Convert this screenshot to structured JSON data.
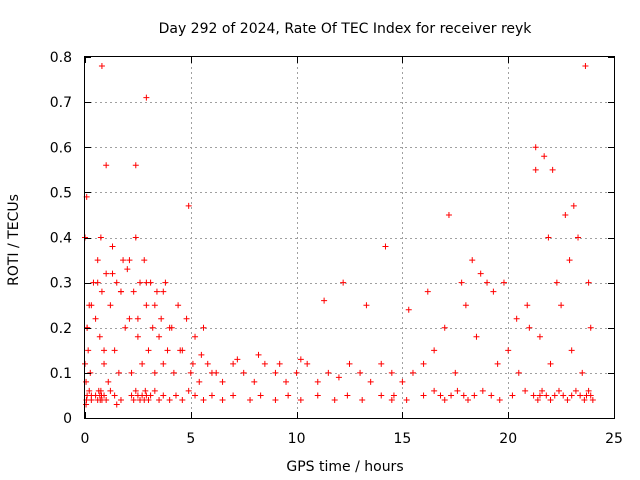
{
  "chart_data": {
    "type": "scatter",
    "title": "Day 292 of 2024, Rate Of TEC Index for receiver reyk",
    "xlabel": "GPS time / hours",
    "ylabel": "ROTI / TECUs",
    "xlim": [
      0,
      25
    ],
    "ylim": [
      0,
      0.8
    ],
    "xticks": [
      0,
      5,
      10,
      15,
      20,
      25
    ],
    "xtick_labels": [
      "0",
      "5",
      "10",
      "15",
      "20",
      "25"
    ],
    "yticks": [
      0,
      0.1,
      0.2,
      0.3,
      0.4,
      0.5,
      0.6,
      0.7,
      0.8
    ],
    "ytick_labels": [
      "0",
      "0.1",
      "0.2",
      "0.3",
      "0.4",
      "0.5",
      "0.6",
      "0.7",
      "0.8"
    ],
    "grid": true,
    "marker": "+",
    "marker_color": "#ff0000",
    "series": [
      {
        "x": [
          0.0,
          0.05,
          0.08,
          0.1,
          0.15,
          0.2,
          0.25,
          0.3,
          0.4,
          0.5,
          0.6,
          0.7,
          0.75,
          0.8,
          0.9,
          1.0,
          1.1,
          1.2,
          1.3,
          1.4,
          1.5,
          1.6,
          1.7,
          1.8,
          1.9,
          2.0,
          2.1,
          2.2,
          2.3,
          2.4,
          2.5,
          2.6,
          2.7,
          2.8,
          2.9,
          3.0,
          3.1,
          3.2,
          3.3,
          3.4,
          3.5,
          3.6,
          3.7,
          3.8,
          3.9,
          4.0,
          4.2,
          4.4,
          4.6,
          4.8,
          5.0,
          5.2,
          5.4,
          5.6,
          5.8,
          6.0,
          6.5,
          7.0,
          7.5,
          8.0,
          8.5,
          9.0,
          9.5,
          10.0,
          10.5,
          11.0,
          11.5,
          12.0,
          12.5,
          13.0,
          13.5,
          14.0,
          14.5,
          15.0,
          15.5,
          16.0,
          16.5,
          17.0,
          17.5,
          18.0,
          18.5,
          19.0,
          19.5,
          20.0,
          20.5,
          21.0,
          21.5,
          22.0,
          22.5,
          23.0,
          23.5,
          23.9,
          0.0,
          0.05,
          0.07,
          0.1,
          0.2,
          0.3,
          0.5,
          0.6,
          0.65,
          0.7,
          0.72,
          0.75,
          0.78,
          0.8,
          0.9,
          1.0,
          1.2,
          1.4,
          1.5,
          1.7,
          2.2,
          2.3,
          2.4,
          2.5,
          2.6,
          2.7,
          2.8,
          2.85,
          2.9,
          3.0,
          3.1,
          3.3,
          3.5,
          3.7,
          4.0,
          4.3,
          4.6,
          4.9,
          5.2,
          5.6,
          6.0,
          6.5,
          7.0,
          7.8,
          8.3,
          9.0,
          9.6,
          10.2,
          11.0,
          11.8,
          12.4,
          13.1,
          14.0,
          14.5,
          14.6,
          15.2,
          16.0,
          16.5,
          16.8,
          17.0,
          17.3,
          17.6,
          17.9,
          18.1,
          18.4,
          18.8,
          19.2,
          19.6,
          20.2,
          20.8,
          21.2,
          21.4,
          21.5,
          21.6,
          21.8,
          22.0,
          22.2,
          22.4,
          22.6,
          22.8,
          23.0,
          23.2,
          23.4,
          23.6,
          23.7,
          23.8,
          23.9,
          24.0,
          0.8,
          1.0,
          2.4,
          2.9,
          4.9,
          21.3,
          21.7,
          22.1,
          22.7,
          23.1,
          23.65,
          0.1,
          0.3,
          0.6,
          0.9,
          1.3,
          1.7,
          2.1,
          2.5,
          2.9,
          3.3,
          3.7,
          4.1,
          4.5,
          5.1,
          5.5,
          6.2,
          7.2,
          8.2,
          9.2,
          10.2,
          11.3,
          12.2,
          13.3,
          14.2,
          15.3,
          16.2,
          17.2,
          17.8,
          18.3,
          18.7,
          19.3,
          19.8,
          20.4,
          20.9,
          21.3,
          21.9,
          22.3,
          22.9,
          23.3,
          23.8
        ],
        "y": [
          0.12,
          0.08,
          0.49,
          0.2,
          0.15,
          0.25,
          0.1,
          0.05,
          0.3,
          0.22,
          0.35,
          0.18,
          0.4,
          0.28,
          0.12,
          0.32,
          0.08,
          0.25,
          0.38,
          0.15,
          0.3,
          0.1,
          0.28,
          0.35,
          0.2,
          0.33,
          0.22,
          0.1,
          0.28,
          0.4,
          0.18,
          0.3,
          0.12,
          0.35,
          0.25,
          0.15,
          0.3,
          0.2,
          0.1,
          0.28,
          0.18,
          0.22,
          0.12,
          0.3,
          0.15,
          0.2,
          0.1,
          0.25,
          0.15,
          0.22,
          0.1,
          0.18,
          0.08,
          0.2,
          0.12,
          0.1,
          0.08,
          0.12,
          0.1,
          0.08,
          0.12,
          0.1,
          0.08,
          0.1,
          0.12,
          0.08,
          0.1,
          0.09,
          0.12,
          0.1,
          0.08,
          0.12,
          0.1,
          0.08,
          0.1,
          0.12,
          0.15,
          0.2,
          0.1,
          0.25,
          0.18,
          0.3,
          0.12,
          0.15,
          0.1,
          0.2,
          0.18,
          0.12,
          0.25,
          0.15,
          0.1,
          0.2,
          0.4,
          0.03,
          0.04,
          0.05,
          0.06,
          0.04,
          0.05,
          0.04,
          0.06,
          0.05,
          0.04,
          0.06,
          0.05,
          0.04,
          0.05,
          0.04,
          0.06,
          0.05,
          0.03,
          0.04,
          0.05,
          0.04,
          0.06,
          0.05,
          0.04,
          0.05,
          0.04,
          0.06,
          0.05,
          0.04,
          0.05,
          0.06,
          0.04,
          0.05,
          0.04,
          0.05,
          0.04,
          0.06,
          0.05,
          0.04,
          0.05,
          0.04,
          0.05,
          0.04,
          0.05,
          0.04,
          0.05,
          0.04,
          0.05,
          0.04,
          0.05,
          0.04,
          0.05,
          0.04,
          0.05,
          0.04,
          0.05,
          0.06,
          0.05,
          0.04,
          0.05,
          0.06,
          0.05,
          0.04,
          0.05,
          0.06,
          0.05,
          0.04,
          0.05,
          0.06,
          0.05,
          0.04,
          0.05,
          0.06,
          0.05,
          0.04,
          0.05,
          0.06,
          0.05,
          0.04,
          0.05,
          0.06,
          0.05,
          0.04,
          0.05,
          0.06,
          0.05,
          0.04,
          0.78,
          0.56,
          0.56,
          0.71,
          0.47,
          0.6,
          0.58,
          0.55,
          0.45,
          0.47,
          0.78,
          0.2,
          0.25,
          0.3,
          0.15,
          0.32,
          0.28,
          0.35,
          0.22,
          0.3,
          0.25,
          0.28,
          0.2,
          0.15,
          0.12,
          0.14,
          0.1,
          0.13,
          0.14,
          0.12,
          0.13,
          0.26,
          0.3,
          0.25,
          0.38,
          0.24,
          0.28,
          0.45,
          0.3,
          0.35,
          0.32,
          0.28,
          0.3,
          0.22,
          0.25,
          0.55,
          0.4,
          0.3,
          0.35,
          0.4,
          0.3
        ]
      }
    ]
  }
}
